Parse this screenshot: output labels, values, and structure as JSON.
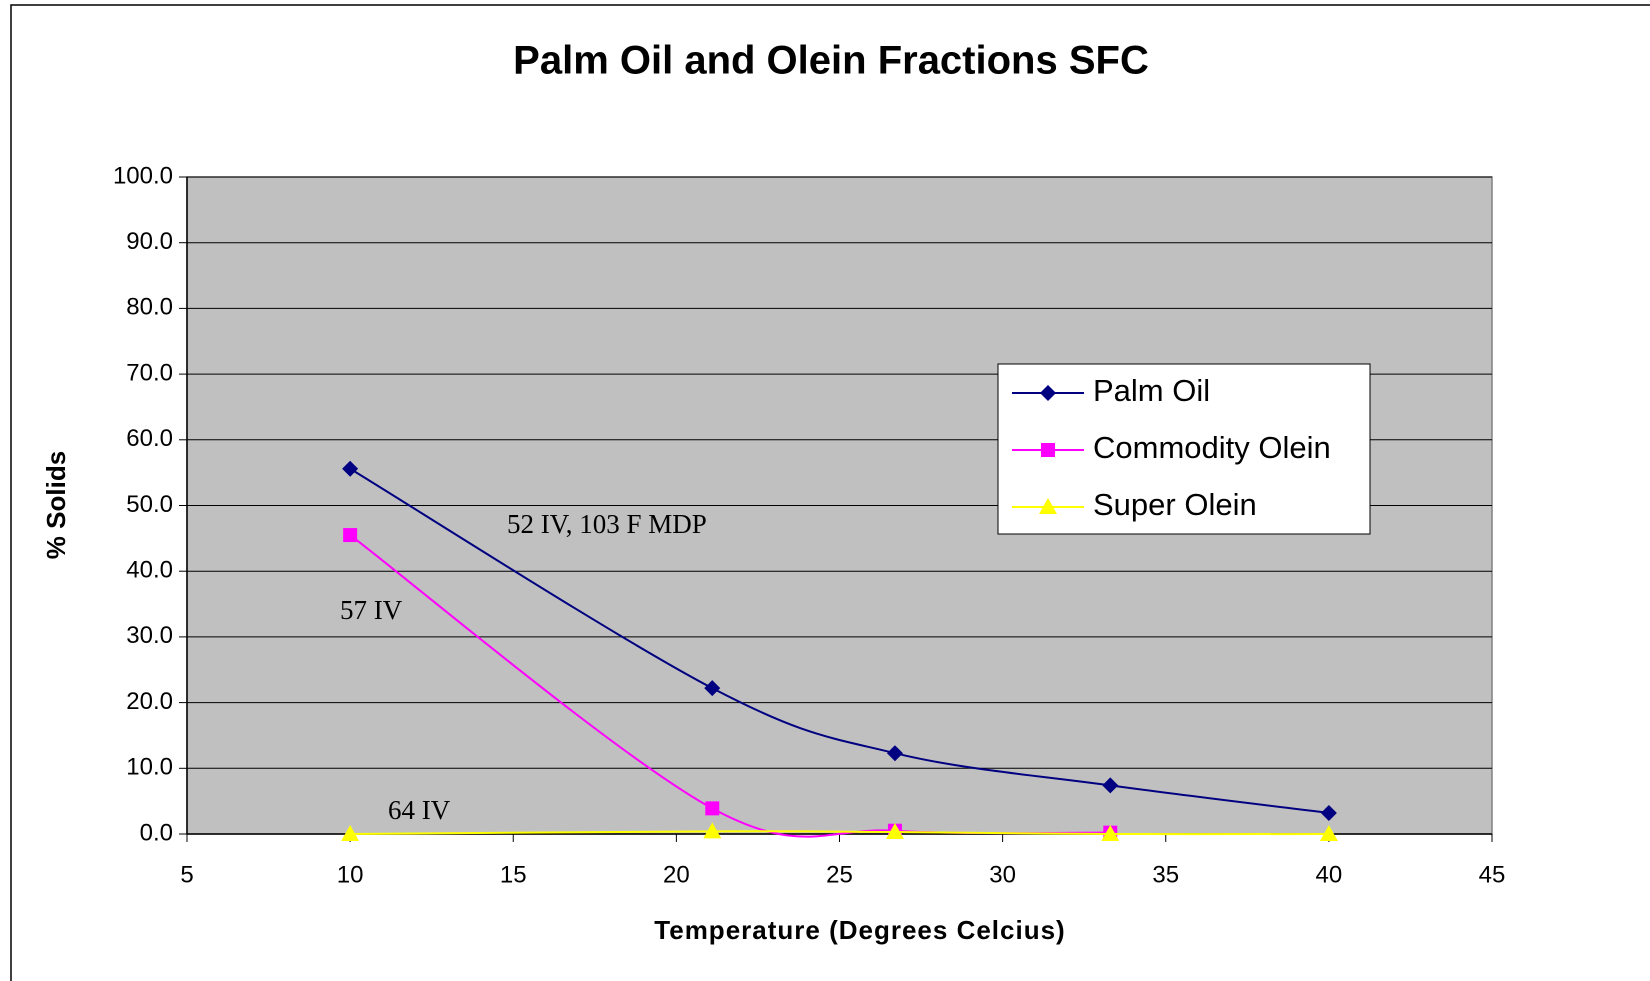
{
  "chart_data": {
    "type": "line",
    "title": "Palm Oil and Olein Fractions SFC",
    "xlabel": "Temperature (Degrees Celcius)",
    "ylabel": "% Solids",
    "x": [
      10,
      21.1,
      26.7,
      33.3,
      40
    ],
    "series": [
      {
        "name": "Palm Oil",
        "color": "#000080",
        "marker": "diamond",
        "values": [
          55.6,
          22.2,
          12.3,
          7.4,
          3.2
        ]
      },
      {
        "name": "Commodity Olein",
        "color": "#ff00ff",
        "marker": "square",
        "values": [
          45.5,
          3.9,
          0.5,
          0.2,
          null
        ]
      },
      {
        "name": "Super Olein",
        "color": "#ffff00",
        "marker": "triangle",
        "values": [
          0.0,
          0.4,
          0.3,
          0.0,
          0.0
        ]
      }
    ],
    "xlim": [
      5,
      45
    ],
    "xticks": [
      5,
      10,
      15,
      20,
      25,
      30,
      35,
      40,
      45
    ],
    "ylim": [
      0,
      100
    ],
    "yticks": [
      {
        "value": 0,
        "label": "0.0"
      },
      {
        "value": 10,
        "label": "10.0"
      },
      {
        "value": 20,
        "label": "20.0"
      },
      {
        "value": 30,
        "label": "30.0"
      },
      {
        "value": 40,
        "label": "40.0"
      },
      {
        "value": 50,
        "label": "50.0"
      },
      {
        "value": 60,
        "label": "60.0"
      },
      {
        "value": 70,
        "label": "70.0"
      },
      {
        "value": 80,
        "label": "80.0"
      },
      {
        "value": 90,
        "label": "90.0"
      },
      {
        "value": 100,
        "label": "100.0"
      }
    ],
    "grid": true,
    "legend": "right",
    "annotations": [
      "52 IV, 103 F MDP",
      "57 IV",
      "64 IV"
    ]
  }
}
